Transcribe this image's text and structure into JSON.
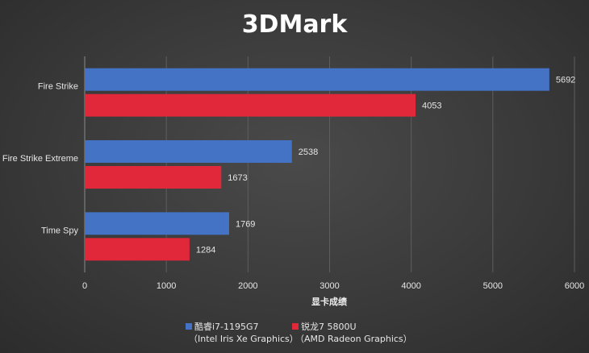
{
  "chart_data": {
    "type": "bar",
    "orientation": "horizontal",
    "title": "3DMark",
    "xlabel": "显卡成绩",
    "ylabel": "",
    "xlim": [
      0,
      6000
    ],
    "xticks": [
      0,
      1000,
      2000,
      3000,
      4000,
      5000,
      6000
    ],
    "categories": [
      "Fire Strike",
      "Fire Strike Extreme",
      "Time Spy"
    ],
    "series": [
      {
        "name": "酷睿i7-1195G7",
        "subtitle": "（Intel Iris Xe Graphics）",
        "color": "#4472c4",
        "values": [
          5692,
          2538,
          1769
        ]
      },
      {
        "name": "锐龙7 5800U",
        "subtitle": "（AMD Radeon Graphics）",
        "color": "#e0283a",
        "values": [
          4053,
          1673,
          1284
        ]
      }
    ],
    "grid": true,
    "legend": "bottom-center"
  }
}
